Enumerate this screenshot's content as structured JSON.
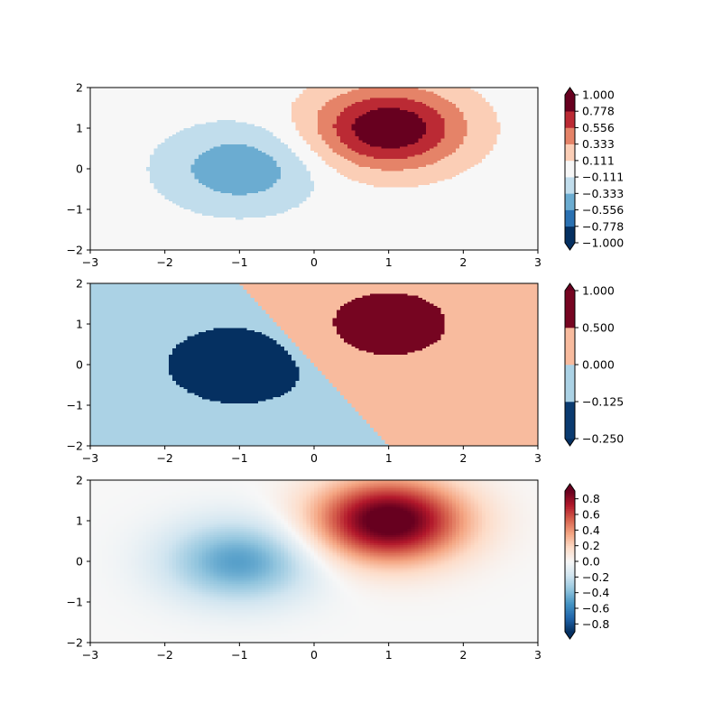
{
  "chart_data": [
    {
      "type": "heatmap",
      "variant": "discrete-levels",
      "function": "z = exp(-(x-1)^2 - (y-1)^2) - 0.5*exp(-(x+1)^2 - y^2), sampled on a pixel grid",
      "xlim": [
        -3,
        3
      ],
      "ylim": [
        -2,
        2
      ],
      "xticks": [
        -3,
        -2,
        -1,
        0,
        1,
        2,
        3
      ],
      "yticks": [
        -2,
        -1,
        0,
        1,
        2
      ],
      "colormap": "RdBu_r",
      "levels": [
        -1.0,
        -0.778,
        -0.556,
        -0.333,
        -0.111,
        0.111,
        0.333,
        0.556,
        0.778,
        1.0
      ],
      "colorbar_ticks": [
        "1.000",
        "0.778",
        "0.556",
        "0.333",
        "0.111",
        "−0.111",
        "−0.333",
        "−0.556",
        "−0.778",
        "−1.000"
      ],
      "extend": "both"
    },
    {
      "type": "heatmap",
      "variant": "custom-bounds",
      "xlim": [
        -3,
        3
      ],
      "ylim": [
        -2,
        2
      ],
      "xticks": [
        -3,
        -2,
        -1,
        0,
        1,
        2,
        3
      ],
      "yticks": [
        -2,
        -1,
        0,
        1,
        2
      ],
      "colormap": "RdBu_r",
      "bounds": [
        -0.25,
        -0.125,
        0.0,
        0.5,
        1.0
      ],
      "colorbar_ticks": [
        "1.000",
        "0.500",
        "0.000",
        "−0.125",
        "−0.250"
      ],
      "extend": "both"
    },
    {
      "type": "heatmap",
      "variant": "continuous",
      "xlim": [
        -3,
        3
      ],
      "ylim": [
        -2,
        2
      ],
      "xticks": [
        -3,
        -2,
        -1,
        0,
        1,
        2,
        3
      ],
      "yticks": [
        -2,
        -1,
        0,
        1,
        2
      ],
      "colormap": "RdBu_r",
      "vmin": -0.9,
      "vmax": 0.9,
      "colorbar_ticks": [
        "0.8",
        "0.6",
        "0.4",
        "0.2",
        "0.0",
        "−0.2",
        "−0.4",
        "−0.6",
        "−0.8"
      ],
      "extend": "both"
    }
  ],
  "colors": {
    "rdbu_r": [
      "#053061",
      "#2166ac",
      "#4393c3",
      "#92c5de",
      "#d1e5f0",
      "#f7f7f7",
      "#fddbc7",
      "#f4a582",
      "#d6604d",
      "#b2182b",
      "#67001f"
    ]
  }
}
